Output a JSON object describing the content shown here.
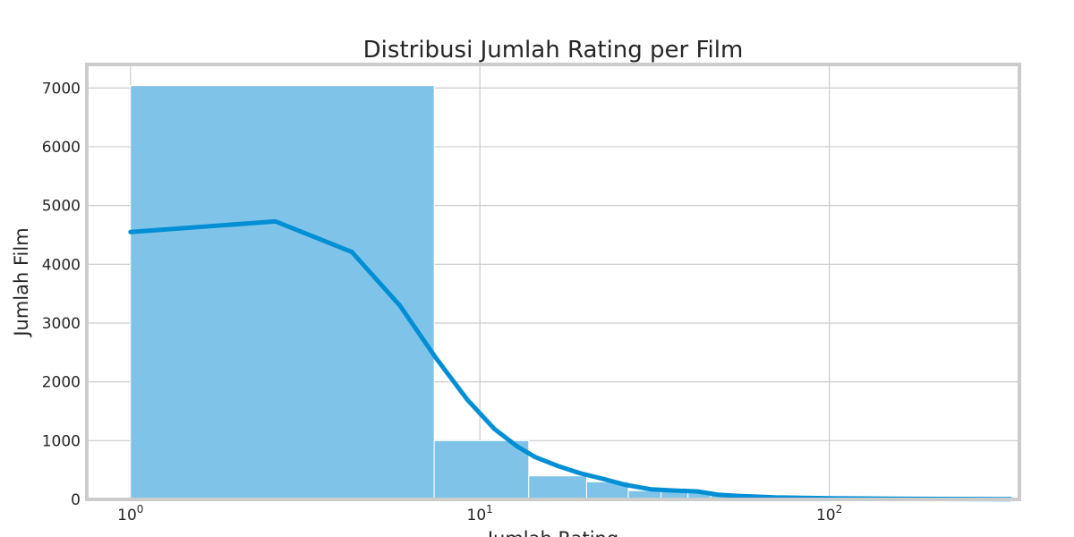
{
  "chart_data": {
    "type": "bar",
    "title": "Distribusi Jumlah Rating per Film",
    "xlabel": "Jumlah Rating",
    "ylabel": "Jumlah Film",
    "xscale": "log",
    "xlim": [
      0.75,
      350
    ],
    "ylim": [
      0,
      7400
    ],
    "grid": true,
    "y_ticks": [
      0,
      1000,
      2000,
      3000,
      4000,
      5000,
      6000,
      7000
    ],
    "x_ticks": [
      {
        "value": 1,
        "base": "10",
        "exp": "0"
      },
      {
        "value": 10,
        "base": "10",
        "exp": "1"
      },
      {
        "value": 100,
        "base": "10",
        "exp": "2"
      }
    ],
    "bins": [
      {
        "x0": 1,
        "x1": 7.4,
        "count": 7040
      },
      {
        "x0": 7.4,
        "x1": 13.8,
        "count": 1000
      },
      {
        "x0": 13.8,
        "x1": 20.2,
        "count": 400
      },
      {
        "x0": 20.2,
        "x1": 26.6,
        "count": 300
      },
      {
        "x0": 26.6,
        "x1": 33.0,
        "count": 150
      },
      {
        "x0": 33.0,
        "x1": 39.4,
        "count": 130
      },
      {
        "x0": 39.4,
        "x1": 45.8,
        "count": 120
      },
      {
        "x0": 45.8,
        "x1": 52.2,
        "count": 80
      },
      {
        "x0": 52.2,
        "x1": 58.6,
        "count": 70
      },
      {
        "x0": 58.6,
        "x1": 65.0,
        "count": 60
      },
      {
        "x0": 65.0,
        "x1": 90,
        "count": 35
      },
      {
        "x0": 90,
        "x1": 150,
        "count": 20
      },
      {
        "x0": 150,
        "x1": 330,
        "count": 15
      }
    ],
    "kde_series": {
      "x": [
        1,
        2.6,
        4.3,
        5.9,
        7.5,
        9.2,
        11,
        12.8,
        14.4,
        16.7,
        19.5,
        22.5,
        26,
        31,
        36,
        42,
        48,
        55,
        70,
        100,
        150,
        330
      ],
      "y": [
        4550,
        4730,
        4210,
        3300,
        2400,
        1700,
        1200,
        900,
        720,
        570,
        440,
        350,
        250,
        170,
        150,
        135,
        80,
        60,
        35,
        20,
        10,
        5
      ]
    },
    "colors": {
      "bar": "#7fc4e8",
      "kde": "#008fd5",
      "grid": "#cccccc"
    }
  }
}
